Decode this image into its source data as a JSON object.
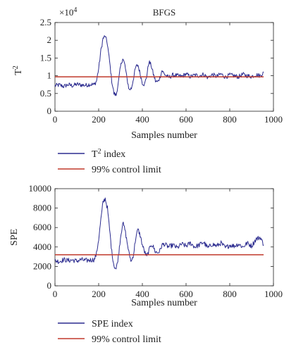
{
  "colors": {
    "series": "#2b2b8f",
    "limit": "#c0392b",
    "axis": "#222222"
  },
  "chart_data": [
    {
      "type": "line",
      "title": "BFGS",
      "xlabel": "Samples number",
      "ylabel": "T",
      "ylabel_superscript": "2",
      "y_multiplier_label": "×10",
      "y_multiplier_exponent": "4",
      "xlim": [
        0,
        1000
      ],
      "ylim": [
        0,
        2.5
      ],
      "x_ticks": [
        0,
        200,
        400,
        600,
        800,
        1000
      ],
      "x_tick_labels": [
        "0",
        "200",
        "400",
        "600",
        "800",
        "1000"
      ],
      "y_ticks": [
        0,
        0.5,
        1,
        1.5,
        2,
        2.5
      ],
      "y_tick_labels": [
        "0",
        "0.5",
        "1",
        "1.5",
        "2",
        "2.5"
      ],
      "grid": false,
      "legend_position": "below",
      "series": [
        {
          "name": "T",
          "name_superscript": "2",
          "name_suffix": " index",
          "x": [
            0,
            20,
            40,
            60,
            80,
            100,
            120,
            140,
            160,
            180,
            190,
            200,
            210,
            220,
            230,
            240,
            250,
            260,
            270,
            280,
            290,
            300,
            310,
            320,
            330,
            340,
            350,
            360,
            370,
            380,
            390,
            400,
            410,
            420,
            430,
            440,
            450,
            460,
            470,
            480,
            490,
            500,
            520,
            540,
            560,
            580,
            600,
            620,
            640,
            660,
            680,
            700,
            720,
            740,
            760,
            780,
            800,
            820,
            840,
            860,
            880,
            900,
            920,
            940,
            955
          ],
          "y": [
            0.72,
            0.74,
            0.7,
            0.75,
            0.72,
            0.76,
            0.74,
            0.73,
            0.76,
            0.75,
            0.85,
            1.2,
            1.7,
            2.05,
            2.12,
            1.9,
            1.4,
            0.85,
            0.5,
            0.45,
            0.8,
            1.25,
            1.5,
            1.3,
            0.9,
            0.6,
            0.65,
            0.95,
            1.25,
            1.3,
            1.05,
            0.8,
            0.75,
            1.0,
            1.4,
            1.3,
            1.05,
            0.85,
            0.82,
            0.95,
            1.15,
            1.05,
            0.95,
            1.02,
            1.0,
            0.98,
            1.05,
            0.97,
            1.02,
            1.0,
            1.04,
            0.95,
            1.03,
            0.98,
            1.05,
            0.96,
            1.02,
            1.0,
            0.97,
            1.04,
            1.0,
            0.98,
            1.03,
            1.0,
            1.1
          ]
        },
        {
          "name": "99% control limit",
          "x": [
            0,
            955
          ],
          "y": [
            0.97,
            0.97
          ]
        }
      ]
    },
    {
      "type": "line",
      "title": "",
      "xlabel": "Samples number",
      "ylabel": "SPE",
      "xlim": [
        0,
        1000
      ],
      "ylim": [
        0,
        10000
      ],
      "x_ticks": [
        0,
        200,
        400,
        600,
        800,
        1000
      ],
      "x_tick_labels": [
        "0",
        "200",
        "400",
        "600",
        "800",
        "1000"
      ],
      "y_ticks": [
        0,
        2000,
        4000,
        6000,
        8000,
        10000
      ],
      "y_tick_labels": [
        "0",
        "2000",
        "4000",
        "6000",
        "8000",
        "10000"
      ],
      "grid": false,
      "legend_position": "below",
      "series": [
        {
          "name": "SPE index",
          "x": [
            0,
            20,
            40,
            60,
            80,
            100,
            120,
            140,
            160,
            180,
            190,
            200,
            210,
            220,
            230,
            240,
            250,
            260,
            270,
            280,
            290,
            300,
            310,
            320,
            330,
            340,
            350,
            360,
            370,
            380,
            390,
            400,
            410,
            420,
            430,
            440,
            450,
            460,
            470,
            480,
            490,
            500,
            520,
            540,
            560,
            580,
            600,
            620,
            640,
            660,
            680,
            700,
            720,
            740,
            760,
            780,
            800,
            820,
            840,
            860,
            880,
            900,
            920,
            940,
            955
          ],
          "y": [
            2600,
            2500,
            2700,
            2600,
            2650,
            2550,
            2700,
            2600,
            2650,
            2700,
            3300,
            4800,
            6800,
            8600,
            9000,
            8000,
            5800,
            3500,
            2100,
            1700,
            3000,
            5000,
            6500,
            5800,
            4500,
            3200,
            2500,
            3300,
            5000,
            5800,
            5200,
            4200,
            3500,
            3000,
            3600,
            4300,
            4000,
            3500,
            3400,
            3600,
            4200,
            4300,
            4000,
            4200,
            3900,
            4300,
            4100,
            4400,
            4000,
            4200,
            4500,
            3900,
            4300,
            4100,
            4400,
            3900,
            4200,
            4100,
            4300,
            4000,
            4400,
            4100,
            4800,
            5000,
            4200
          ]
        },
        {
          "name": "99% control limit",
          "x": [
            0,
            955
          ],
          "y": [
            3200,
            3200
          ]
        }
      ]
    }
  ]
}
